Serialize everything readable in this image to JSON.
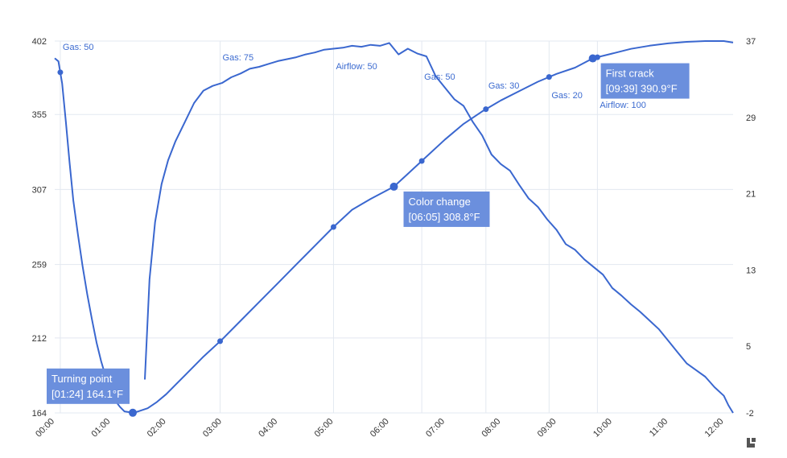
{
  "chart_data": {
    "type": "line",
    "xlabel": "",
    "ylabel_left": "",
    "ylabel_right": "",
    "x_ticks": [
      "00:00",
      "01:00",
      "02:00",
      "03:00",
      "04:00",
      "05:00",
      "06:00",
      "07:00",
      "08:00",
      "09:00",
      "10:00",
      "11:00",
      "12:00"
    ],
    "x_range_seconds": [
      0,
      730
    ],
    "y_left_ticks": [
      164,
      212,
      259,
      307,
      355,
      402
    ],
    "y_left_range": [
      164,
      402
    ],
    "y_right_ticks": [
      -2,
      5,
      13,
      21,
      29,
      37
    ],
    "y_right_range": [
      -2,
      37
    ],
    "grid": true,
    "series": [
      {
        "axis": "left",
        "color": "#3a67cf",
        "points": [
          [
            "00:00",
            391
          ],
          [
            "00:04",
            389
          ],
          [
            "00:08",
            375
          ],
          [
            "00:12",
            350
          ],
          [
            "00:16",
            324
          ],
          [
            "00:20",
            300
          ],
          [
            "00:25",
            278
          ],
          [
            "00:30",
            258
          ],
          [
            "00:35",
            240
          ],
          [
            "00:40",
            224
          ],
          [
            "00:45",
            209
          ],
          [
            "00:50",
            197
          ],
          [
            "00:55",
            187
          ],
          [
            "01:00",
            179
          ],
          [
            "01:05",
            172
          ],
          [
            "01:10",
            168
          ],
          [
            "01:15",
            165
          ],
          [
            "01:20",
            164.5
          ],
          [
            "01:24",
            164.1
          ],
          [
            "01:30",
            165
          ],
          [
            "01:40",
            167
          ],
          [
            "01:50",
            171
          ],
          [
            "02:00",
            176
          ],
          [
            "02:10",
            182
          ],
          [
            "02:20",
            188
          ],
          [
            "02:30",
            194
          ],
          [
            "02:40",
            200
          ],
          [
            "03:00",
            211
          ],
          [
            "03:20",
            223
          ],
          [
            "03:40",
            235
          ],
          [
            "04:00",
            247
          ],
          [
            "04:20",
            259
          ],
          [
            "04:40",
            271
          ],
          [
            "05:00",
            283
          ],
          [
            "05:20",
            294
          ],
          [
            "05:40",
            301
          ],
          [
            "06:05",
            308.8
          ],
          [
            "06:20",
            317
          ],
          [
            "06:40",
            328
          ],
          [
            "07:00",
            339
          ],
          [
            "07:20",
            349
          ],
          [
            "07:40",
            357
          ],
          [
            "08:00",
            364
          ],
          [
            "08:20",
            370
          ],
          [
            "08:40",
            376
          ],
          [
            "09:00",
            381
          ],
          [
            "09:20",
            385
          ],
          [
            "09:39",
            390.9
          ],
          [
            "10:00",
            394
          ],
          [
            "10:20",
            397
          ],
          [
            "10:40",
            399
          ],
          [
            "11:00",
            400.5
          ],
          [
            "11:20",
            401.5
          ],
          [
            "11:40",
            402
          ],
          [
            "12:00",
            402
          ],
          [
            "12:10",
            401
          ]
        ]
      },
      {
        "axis": "right",
        "color": "#3a67cf",
        "points": [
          [
            "01:37",
            1.5
          ],
          [
            "01:42",
            12
          ],
          [
            "01:48",
            18
          ],
          [
            "01:55",
            22
          ],
          [
            "02:02",
            24.5
          ],
          [
            "02:10",
            26.5
          ],
          [
            "02:20",
            28.5
          ],
          [
            "02:30",
            30.5
          ],
          [
            "02:40",
            31.8
          ],
          [
            "02:50",
            32.3
          ],
          [
            "03:00",
            32.6
          ],
          [
            "03:10",
            33.2
          ],
          [
            "03:20",
            33.6
          ],
          [
            "03:30",
            34.1
          ],
          [
            "03:40",
            34.3
          ],
          [
            "03:50",
            34.6
          ],
          [
            "04:00",
            34.9
          ],
          [
            "04:10",
            35.1
          ],
          [
            "04:20",
            35.3
          ],
          [
            "04:30",
            35.6
          ],
          [
            "04:40",
            35.8
          ],
          [
            "04:50",
            36.1
          ],
          [
            "05:00",
            36.2
          ],
          [
            "05:10",
            36.3
          ],
          [
            "05:20",
            36.5
          ],
          [
            "05:30",
            36.4
          ],
          [
            "05:40",
            36.6
          ],
          [
            "05:50",
            36.5
          ],
          [
            "06:00",
            36.8
          ],
          [
            "06:10",
            35.6
          ],
          [
            "06:20",
            36.2
          ],
          [
            "06:30",
            35.7
          ],
          [
            "06:40",
            35.4
          ],
          [
            "06:50",
            33.3
          ],
          [
            "07:00",
            32.1
          ],
          [
            "07:10",
            30.9
          ],
          [
            "07:20",
            30.2
          ],
          [
            "07:30",
            28.5
          ],
          [
            "07:40",
            27.1
          ],
          [
            "07:50",
            25.1
          ],
          [
            "08:00",
            24.1
          ],
          [
            "08:10",
            23.4
          ],
          [
            "08:20",
            21.9
          ],
          [
            "08:30",
            20.5
          ],
          [
            "08:40",
            19.6
          ],
          [
            "08:50",
            18.3
          ],
          [
            "09:00",
            17.2
          ],
          [
            "09:10",
            15.7
          ],
          [
            "09:20",
            15.1
          ],
          [
            "09:30",
            14.1
          ],
          [
            "09:40",
            13.3
          ],
          [
            "09:50",
            12.5
          ],
          [
            "10:00",
            11.1
          ],
          [
            "10:10",
            10.3
          ],
          [
            "10:20",
            9.4
          ],
          [
            "10:30",
            8.6
          ],
          [
            "10:40",
            7.7
          ],
          [
            "10:50",
            6.8
          ],
          [
            "11:00",
            5.6
          ],
          [
            "11:10",
            4.4
          ],
          [
            "11:20",
            3.2
          ],
          [
            "11:30",
            2.5
          ],
          [
            "11:40",
            1.8
          ],
          [
            "11:50",
            0.7
          ],
          [
            "12:00",
            -0.2
          ],
          [
            "12:05",
            -1.2
          ],
          [
            "12:10",
            -2
          ]
        ]
      }
    ],
    "event_markers": [
      {
        "time": "00:06",
        "label": "Gas: 50"
      },
      {
        "time": "02:58",
        "label": "Gas: 75"
      },
      {
        "time": "05:00",
        "label": "Airflow: 50"
      },
      {
        "time": "06:35",
        "label": "Gas: 50"
      },
      {
        "time": "07:44",
        "label": "Gas: 30"
      },
      {
        "time": "08:52",
        "label": "Gas: 20"
      },
      {
        "time": "09:44",
        "label": "Airflow: 100"
      }
    ],
    "annotations": [
      {
        "time": "01:24",
        "temp": 164.1,
        "title": "Turning point",
        "detail": "[01:24] 164.1°F"
      },
      {
        "time": "06:05",
        "temp": 308.8,
        "title": "Color change",
        "detail": "[06:05] 308.8°F"
      },
      {
        "time": "09:39",
        "temp": 390.9,
        "title": "First crack",
        "detail": "[09:39] 390.9°F"
      }
    ],
    "colors": {
      "line": "#3a67cf",
      "callout_bg": "#6b8fdd",
      "grid": "#e3e8f0",
      "event_text": "#3c6bd0"
    }
  },
  "logo": {
    "icon": "app-logo-icon"
  }
}
